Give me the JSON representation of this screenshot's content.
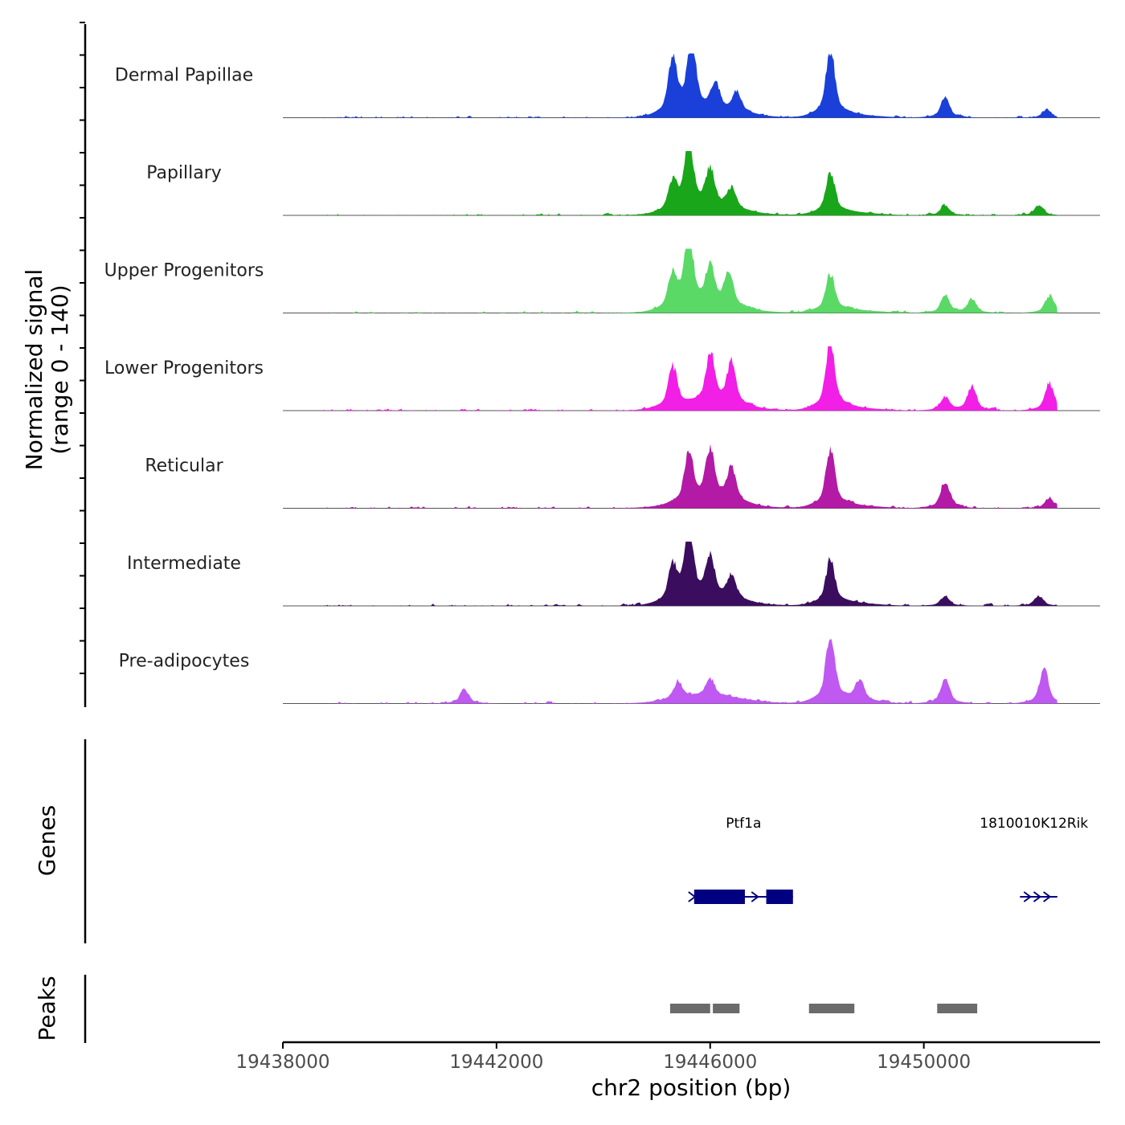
{
  "chart_data": {
    "type": "area",
    "title": "",
    "xlabel": "chr2 position (bp)",
    "ylabel": "Normalized signal",
    "ylabel_range": "(range 0 - 140)",
    "xlim": [
      19438000,
      19453300
    ],
    "ylim": [
      0,
      140
    ],
    "x_ticks": [
      19438000,
      19442000,
      19446000,
      19450000
    ],
    "x_tick_labels": [
      "19438000",
      "19442000",
      "19446000",
      "19450000"
    ],
    "shared_peaks": [
      {
        "x": 19445600,
        "h": 0.95
      },
      {
        "x": 19446200,
        "h": 0.5
      },
      {
        "x": 19448250,
        "h": 0.8
      },
      {
        "x": 19450400,
        "h": 0.25
      },
      {
        "x": 19452150,
        "h": 0.15
      }
    ],
    "series": [
      {
        "name": "Dermal Papillae",
        "color": "#1a40d9",
        "peaks": [
          {
            "x": 19445300,
            "h": 0.8
          },
          {
            "x": 19445650,
            "h": 1.0
          },
          {
            "x": 19446100,
            "h": 0.35
          },
          {
            "x": 19446500,
            "h": 0.3
          },
          {
            "x": 19448250,
            "h": 0.98
          },
          {
            "x": 19450400,
            "h": 0.3
          },
          {
            "x": 19452300,
            "h": 0.12
          }
        ]
      },
      {
        "name": "Papillary",
        "color": "#1aa61a",
        "peaks": [
          {
            "x": 19445300,
            "h": 0.4
          },
          {
            "x": 19445600,
            "h": 1.0
          },
          {
            "x": 19446000,
            "h": 0.55
          },
          {
            "x": 19446400,
            "h": 0.3
          },
          {
            "x": 19448250,
            "h": 0.6
          },
          {
            "x": 19450400,
            "h": 0.15
          },
          {
            "x": 19452150,
            "h": 0.15
          }
        ]
      },
      {
        "name": "Upper Progenitors",
        "color": "#5ad966",
        "peaks": [
          {
            "x": 19445300,
            "h": 0.5
          },
          {
            "x": 19445600,
            "h": 1.0
          },
          {
            "x": 19446000,
            "h": 0.55
          },
          {
            "x": 19446350,
            "h": 0.5
          },
          {
            "x": 19448250,
            "h": 0.55
          },
          {
            "x": 19450400,
            "h": 0.25
          },
          {
            "x": 19450900,
            "h": 0.2
          },
          {
            "x": 19452350,
            "h": 0.25
          }
        ]
      },
      {
        "name": "Lower Progenitors",
        "color": "#f21fe6",
        "peaks": [
          {
            "x": 19445300,
            "h": 0.6
          },
          {
            "x": 19446000,
            "h": 0.7
          },
          {
            "x": 19446400,
            "h": 0.6
          },
          {
            "x": 19448250,
            "h": 1.0
          },
          {
            "x": 19450400,
            "h": 0.2
          },
          {
            "x": 19450900,
            "h": 0.35
          },
          {
            "x": 19452350,
            "h": 0.4
          }
        ]
      },
      {
        "name": "Reticular",
        "color": "#b31aa6",
        "peaks": [
          {
            "x": 19445600,
            "h": 0.7
          },
          {
            "x": 19446000,
            "h": 0.75
          },
          {
            "x": 19446400,
            "h": 0.5
          },
          {
            "x": 19448250,
            "h": 0.85
          },
          {
            "x": 19450400,
            "h": 0.4
          },
          {
            "x": 19452350,
            "h": 0.15
          }
        ]
      },
      {
        "name": "Intermediate",
        "color": "#3b0d5e",
        "peaks": [
          {
            "x": 19445300,
            "h": 0.5
          },
          {
            "x": 19445600,
            "h": 1.0
          },
          {
            "x": 19446000,
            "h": 0.6
          },
          {
            "x": 19446400,
            "h": 0.35
          },
          {
            "x": 19448250,
            "h": 0.65
          },
          {
            "x": 19450400,
            "h": 0.15
          },
          {
            "x": 19452150,
            "h": 0.15
          }
        ]
      },
      {
        "name": "Pre-adipocytes",
        "color": "#bf59f2",
        "peaks": [
          {
            "x": 19441400,
            "h": 0.2
          },
          {
            "x": 19445400,
            "h": 0.25
          },
          {
            "x": 19446000,
            "h": 0.25
          },
          {
            "x": 19448250,
            "h": 1.0
          },
          {
            "x": 19448800,
            "h": 0.3
          },
          {
            "x": 19450400,
            "h": 0.35
          },
          {
            "x": 19452250,
            "h": 0.5
          }
        ]
      }
    ]
  },
  "genes": {
    "title": "Genes",
    "color": "#000080",
    "items": [
      {
        "name": "Ptf1a",
        "start": 19445700,
        "end": 19447550,
        "exons": [
          [
            19445700,
            19446650
          ],
          [
            19447050,
            19447550
          ]
        ]
      },
      {
        "name": "1810010K12Rik",
        "start": 19451800,
        "end": 19452500,
        "exons": []
      }
    ]
  },
  "peaks": {
    "title": "Peaks",
    "color": "#6b6b6b",
    "regions": [
      [
        19445250,
        19446000
      ],
      [
        19446050,
        19446550
      ],
      [
        19447850,
        19448700
      ],
      [
        19450250,
        19451000
      ]
    ]
  }
}
